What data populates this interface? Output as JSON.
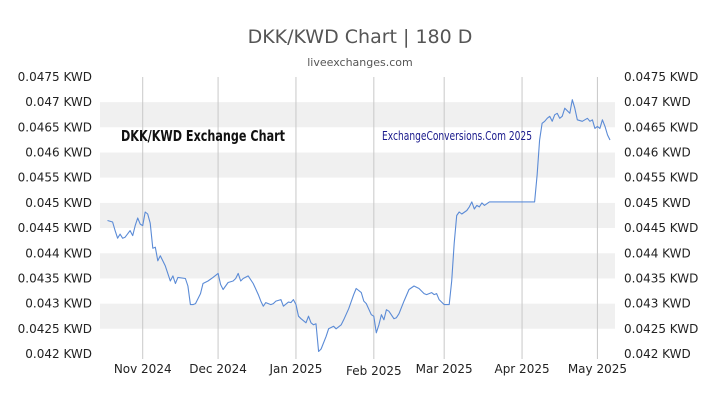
{
  "header": {
    "title": "DKK/KWD Chart | 180 D",
    "subtitle": "liveexchanges.com"
  },
  "chart_data": {
    "type": "line",
    "title": "DKK/KWD Chart | 180 D",
    "subtitle": "liveexchanges.com",
    "inner_title": "DKK/KWD Exchange Chart",
    "watermark": "ExchangeConversions.Com 2025",
    "xlabel": "",
    "ylabel": "",
    "ylim": [
      0.042,
      0.0475
    ],
    "grid": true,
    "y_ticks": [
      "0.0475 KWD",
      "0.047 KWD",
      "0.0465 KWD",
      "0.046 KWD",
      "0.0455 KWD",
      "0.045 KWD",
      "0.0445 KWD",
      "0.044 KWD",
      "0.0435 KWD",
      "0.043 KWD",
      "0.0425 KWD",
      "0.042 KWD"
    ],
    "y_tick_values": [
      0.0475,
      0.047,
      0.0465,
      0.046,
      0.0455,
      0.045,
      0.0445,
      0.044,
      0.0435,
      0.043,
      0.0425,
      0.042
    ],
    "x_ticks": [
      {
        "label": "Nov 2024",
        "date": "2024-11-01"
      },
      {
        "label": "Dec 2024",
        "date": "2024-12-01"
      },
      {
        "label": "Jan 2025",
        "date": "2025-01-01"
      },
      {
        "label": "Feb 2025",
        "date": "2025-02-01"
      },
      {
        "label": "Mar 2025",
        "date": "2025-03-01"
      },
      {
        "label": "Apr 2025",
        "date": "2025-04-01"
      },
      {
        "label": "May 2025",
        "date": "2025-05-01"
      }
    ],
    "series": [
      {
        "color": "#5b8bd6",
        "points": [
          [
            "2024-10-18",
            0.04465
          ],
          [
            "2024-10-20",
            0.04462
          ],
          [
            "2024-10-21",
            0.04445
          ],
          [
            "2024-10-22",
            0.0443
          ],
          [
            "2024-10-23",
            0.04438
          ],
          [
            "2024-10-24",
            0.0443
          ],
          [
            "2024-10-25",
            0.04432
          ],
          [
            "2024-10-27",
            0.04445
          ],
          [
            "2024-10-28",
            0.04435
          ],
          [
            "2024-10-29",
            0.04455
          ],
          [
            "2024-10-30",
            0.0447
          ],
          [
            "2024-10-31",
            0.04458
          ],
          [
            "2024-11-01",
            0.04455
          ],
          [
            "2024-11-02",
            0.04482
          ],
          [
            "2024-11-03",
            0.04478
          ],
          [
            "2024-11-04",
            0.0446
          ],
          [
            "2024-11-05",
            0.0441
          ],
          [
            "2024-11-06",
            0.04412
          ],
          [
            "2024-11-07",
            0.04385
          ],
          [
            "2024-11-08",
            0.04395
          ],
          [
            "2024-11-10",
            0.04375
          ],
          [
            "2024-11-11",
            0.0436
          ],
          [
            "2024-11-12",
            0.04345
          ],
          [
            "2024-11-13",
            0.04355
          ],
          [
            "2024-11-14",
            0.0434
          ],
          [
            "2024-11-15",
            0.04352
          ],
          [
            "2024-11-18",
            0.0435
          ],
          [
            "2024-11-19",
            0.04335
          ],
          [
            "2024-11-20",
            0.04298
          ],
          [
            "2024-11-21",
            0.04298
          ],
          [
            "2024-11-22",
            0.043
          ],
          [
            "2024-11-24",
            0.0432
          ],
          [
            "2024-11-25",
            0.0434
          ],
          [
            "2024-11-27",
            0.04345
          ],
          [
            "2024-11-29",
            0.04352
          ],
          [
            "2024-12-01",
            0.0436
          ],
          [
            "2024-12-02",
            0.04338
          ],
          [
            "2024-12-03",
            0.04328
          ],
          [
            "2024-12-04",
            0.04335
          ],
          [
            "2024-12-05",
            0.04342
          ],
          [
            "2024-12-07",
            0.04345
          ],
          [
            "2024-12-08",
            0.0435
          ],
          [
            "2024-12-09",
            0.0436
          ],
          [
            "2024-12-10",
            0.04345
          ],
          [
            "2024-12-11",
            0.0435
          ],
          [
            "2024-12-13",
            0.04355
          ],
          [
            "2024-12-15",
            0.0434
          ],
          [
            "2024-12-17",
            0.04318
          ],
          [
            "2024-12-18",
            0.04305
          ],
          [
            "2024-12-19",
            0.04295
          ],
          [
            "2024-12-20",
            0.04302
          ],
          [
            "2024-12-22",
            0.04298
          ],
          [
            "2024-12-23",
            0.043
          ],
          [
            "2024-12-24",
            0.04305
          ],
          [
            "2024-12-26",
            0.04308
          ],
          [
            "2024-12-27",
            0.04295
          ],
          [
            "2024-12-29",
            0.04303
          ],
          [
            "2024-12-30",
            0.04302
          ],
          [
            "2024-12-31",
            0.04308
          ],
          [
            "2025-01-01",
            0.04298
          ],
          [
            "2025-01-02",
            0.04275
          ],
          [
            "2025-01-03",
            0.0427
          ],
          [
            "2025-01-05",
            0.04262
          ],
          [
            "2025-01-06",
            0.04275
          ],
          [
            "2025-01-07",
            0.04262
          ],
          [
            "2025-01-08",
            0.04258
          ],
          [
            "2025-01-09",
            0.0426
          ],
          [
            "2025-01-10",
            0.04205
          ],
          [
            "2025-01-11",
            0.0421
          ],
          [
            "2025-01-13",
            0.04235
          ],
          [
            "2025-01-14",
            0.0425
          ],
          [
            "2025-01-16",
            0.04255
          ],
          [
            "2025-01-17",
            0.0425
          ],
          [
            "2025-01-19",
            0.04258
          ],
          [
            "2025-01-20",
            0.04268
          ],
          [
            "2025-01-22",
            0.0429
          ],
          [
            "2025-01-24",
            0.04318
          ],
          [
            "2025-01-25",
            0.0433
          ],
          [
            "2025-01-27",
            0.04322
          ],
          [
            "2025-01-28",
            0.04305
          ],
          [
            "2025-01-29",
            0.043
          ],
          [
            "2025-01-31",
            0.04278
          ],
          [
            "2025-02-01",
            0.04275
          ],
          [
            "2025-02-02",
            0.04242
          ],
          [
            "2025-02-03",
            0.04258
          ],
          [
            "2025-02-04",
            0.04278
          ],
          [
            "2025-02-05",
            0.04268
          ],
          [
            "2025-02-06",
            0.04288
          ],
          [
            "2025-02-07",
            0.04285
          ],
          [
            "2025-02-09",
            0.0427
          ],
          [
            "2025-02-10",
            0.04272
          ],
          [
            "2025-02-11",
            0.0428
          ],
          [
            "2025-02-13",
            0.04305
          ],
          [
            "2025-02-15",
            0.04328
          ],
          [
            "2025-02-17",
            0.04335
          ],
          [
            "2025-02-19",
            0.0433
          ],
          [
            "2025-02-21",
            0.0432
          ],
          [
            "2025-02-22",
            0.04318
          ],
          [
            "2025-02-24",
            0.04322
          ],
          [
            "2025-02-25",
            0.04318
          ],
          [
            "2025-02-26",
            0.0432
          ],
          [
            "2025-02-27",
            0.04308
          ],
          [
            "2025-03-01",
            0.04298
          ],
          [
            "2025-03-03",
            0.04298
          ],
          [
            "2025-03-04",
            0.04345
          ],
          [
            "2025-03-05",
            0.0442
          ],
          [
            "2025-03-06",
            0.04475
          ],
          [
            "2025-03-07",
            0.04482
          ],
          [
            "2025-03-08",
            0.04478
          ],
          [
            "2025-03-10",
            0.04485
          ],
          [
            "2025-03-11",
            0.04492
          ],
          [
            "2025-03-12",
            0.04502
          ],
          [
            "2025-03-13",
            0.04488
          ],
          [
            "2025-03-14",
            0.04495
          ],
          [
            "2025-03-15",
            0.04492
          ],
          [
            "2025-03-16",
            0.045
          ],
          [
            "2025-03-17",
            0.04495
          ],
          [
            "2025-03-19",
            0.04502
          ],
          [
            "2025-03-20",
            0.04502
          ],
          [
            "2025-03-21",
            0.04502
          ],
          [
            "2025-04-04",
            0.04502
          ],
          [
            "2025-04-06",
            0.04502
          ],
          [
            "2025-04-07",
            0.04555
          ],
          [
            "2025-04-08",
            0.04625
          ],
          [
            "2025-04-09",
            0.04658
          ],
          [
            "2025-04-10",
            0.04662
          ],
          [
            "2025-04-11",
            0.04668
          ],
          [
            "2025-04-12",
            0.04672
          ],
          [
            "2025-04-13",
            0.04662
          ],
          [
            "2025-04-14",
            0.04675
          ],
          [
            "2025-04-15",
            0.04678
          ],
          [
            "2025-04-16",
            0.04668
          ],
          [
            "2025-04-17",
            0.04672
          ],
          [
            "2025-04-18",
            0.04688
          ],
          [
            "2025-04-20",
            0.04678
          ],
          [
            "2025-04-21",
            0.04705
          ],
          [
            "2025-04-22",
            0.04688
          ],
          [
            "2025-04-23",
            0.04665
          ],
          [
            "2025-04-25",
            0.04662
          ],
          [
            "2025-04-27",
            0.04668
          ],
          [
            "2025-04-28",
            0.04662
          ],
          [
            "2025-04-29",
            0.04665
          ],
          [
            "2025-04-30",
            0.04648
          ],
          [
            "2025-05-01",
            0.04652
          ],
          [
            "2025-05-02",
            0.04648
          ],
          [
            "2025-05-03",
            0.04665
          ],
          [
            "2025-05-04",
            0.04652
          ],
          [
            "2025-05-05",
            0.04635
          ],
          [
            "2025-05-06",
            0.04625
          ]
        ]
      }
    ]
  }
}
